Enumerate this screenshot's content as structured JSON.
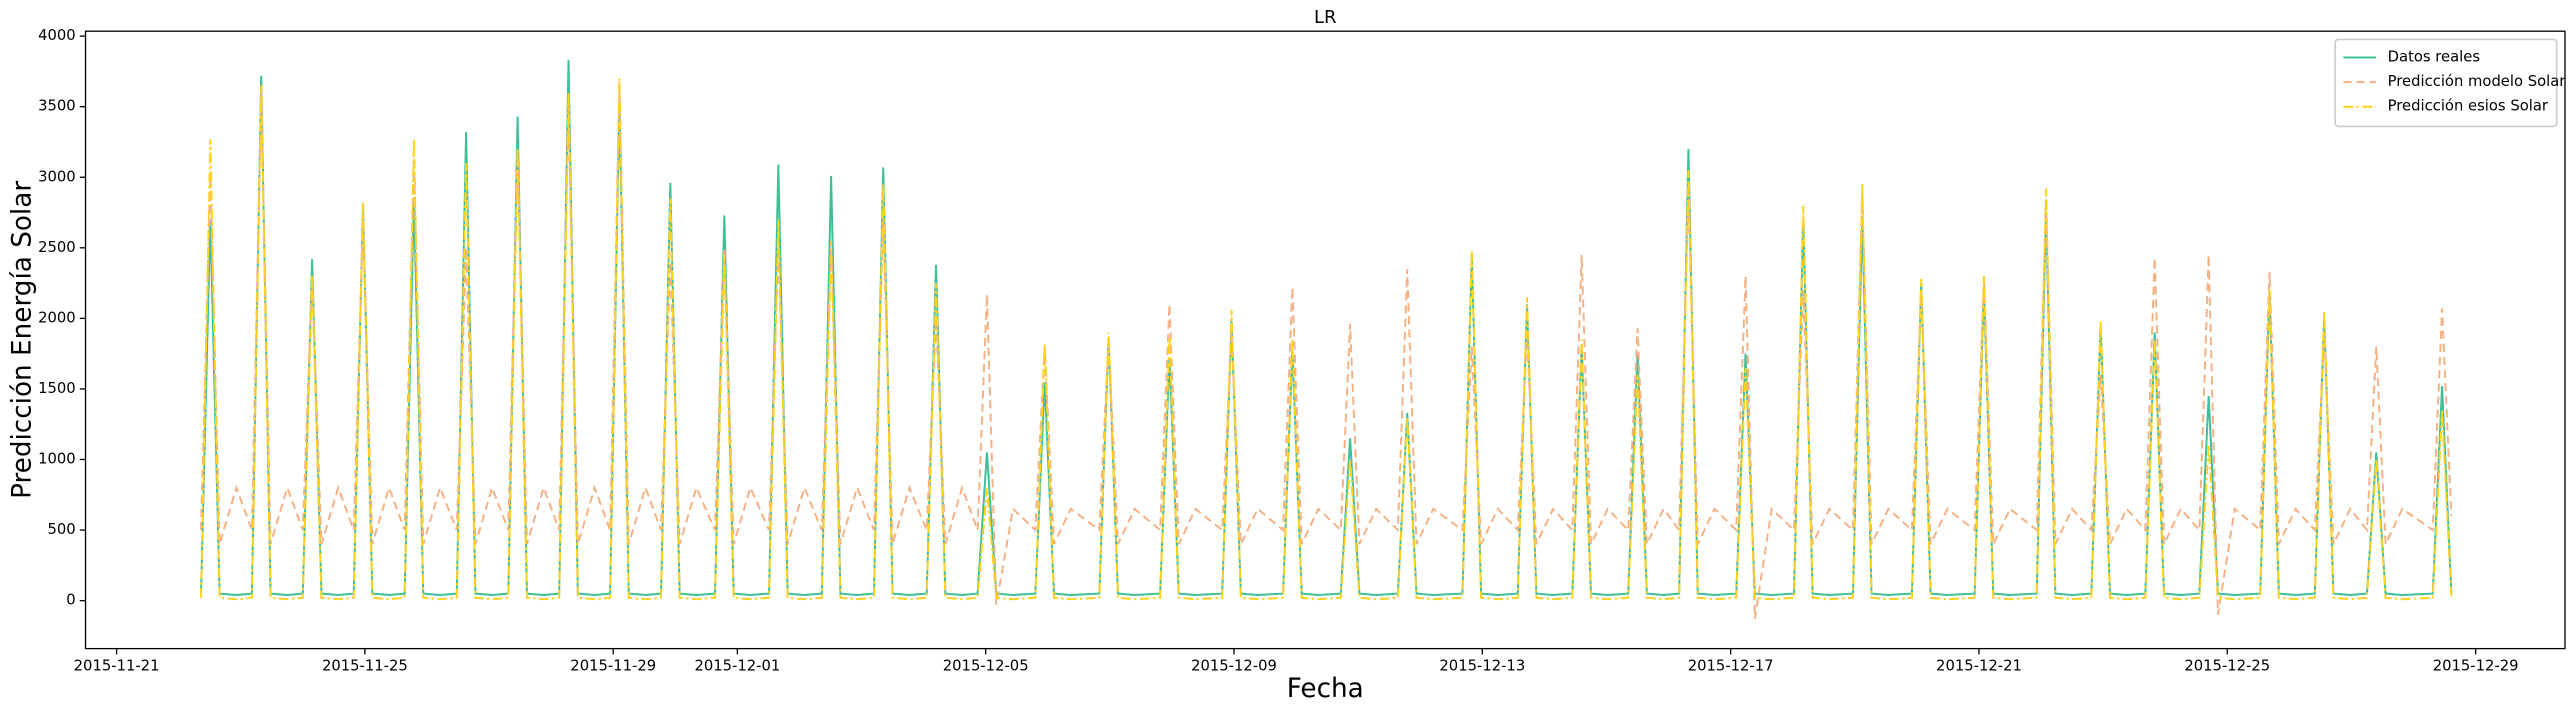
{
  "chart_data": {
    "type": "line",
    "title": "LR",
    "x_label": "Fecha",
    "y_label": "Predicción Energía Solar",
    "x": [
      22.36,
      22.51,
      22.66,
      22.93,
      23.18,
      23.33,
      23.48,
      23.75,
      24.0,
      24.15,
      24.3,
      24.57,
      24.82,
      24.97,
      25.12,
      25.39,
      25.64,
      25.79,
      25.94,
      26.21,
      26.48,
      26.63,
      26.78,
      27.05,
      27.31,
      27.46,
      27.61,
      27.88,
      28.13,
      28.28,
      28.43,
      28.7,
      28.95,
      29.1,
      29.25,
      29.52,
      29.77,
      29.92,
      30.07,
      30.34,
      30.64,
      30.79,
      30.94,
      31.21,
      31.51,
      31.66,
      31.81,
      32.08,
      32.36,
      32.51,
      32.66,
      32.93,
      33.2,
      33.35,
      33.5,
      33.77,
      34.05,
      34.2,
      34.35,
      34.62,
      34.87,
      35.02,
      35.17,
      35.44,
      35.8,
      35.95,
      36.1,
      36.37,
      36.83,
      36.98,
      37.13,
      37.4,
      37.81,
      37.96,
      38.11,
      38.38,
      38.81,
      38.96,
      39.11,
      39.38,
      39.79,
      39.94,
      40.09,
      40.36,
      40.72,
      40.87,
      41.02,
      41.29,
      41.64,
      41.79,
      41.94,
      42.21,
      42.68,
      42.83,
      42.98,
      43.25,
      43.57,
      43.72,
      43.87,
      44.14,
      44.45,
      44.6,
      44.75,
      45.02,
      45.35,
      45.5,
      45.65,
      45.92,
      46.17,
      46.32,
      46.47,
      46.74,
      47.09,
      47.24,
      47.39,
      47.66,
      48.02,
      48.17,
      48.32,
      48.59,
      48.97,
      49.12,
      49.27,
      49.54,
      49.92,
      50.07,
      50.22,
      50.49,
      50.93,
      51.08,
      51.23,
      51.5,
      51.93,
      52.08,
      52.23,
      52.5,
      52.81,
      52.96,
      53.11,
      53.38,
      53.68,
      53.83,
      53.98,
      54.25,
      54.55,
      54.7,
      54.85,
      55.12,
      55.53,
      55.68,
      55.83,
      56.1,
      56.41,
      56.56,
      56.71,
      56.98,
      57.25,
      57.4,
      57.55,
      57.82,
      58.31,
      58.46,
      58.61
    ],
    "series": [
      {
        "name": "Datos reales",
        "color": "#3dbf98",
        "dash": "",
        "values": [
          50,
          2700,
          50,
          40,
          50,
          3720,
          50,
          40,
          50,
          2420,
          50,
          40,
          50,
          2800,
          50,
          40,
          50,
          2850,
          50,
          40,
          50,
          3320,
          50,
          40,
          50,
          3430,
          50,
          40,
          50,
          3830,
          50,
          40,
          50,
          3550,
          50,
          40,
          50,
          2960,
          50,
          40,
          50,
          2730,
          50,
          40,
          50,
          3090,
          50,
          40,
          50,
          3010,
          50,
          40,
          50,
          3070,
          50,
          40,
          50,
          2380,
          50,
          40,
          50,
          1050,
          50,
          40,
          50,
          1550,
          50,
          40,
          50,
          1870,
          50,
          40,
          50,
          1720,
          50,
          40,
          50,
          1980,
          50,
          40,
          50,
          1780,
          50,
          40,
          50,
          1150,
          50,
          40,
          50,
          1330,
          50,
          40,
          50,
          2450,
          50,
          40,
          50,
          2100,
          50,
          40,
          50,
          1800,
          50,
          40,
          50,
          1750,
          50,
          40,
          50,
          3200,
          50,
          40,
          50,
          1750,
          50,
          40,
          50,
          2700,
          50,
          40,
          50,
          2720,
          50,
          40,
          50,
          2250,
          50,
          40,
          50,
          2220,
          50,
          40,
          50,
          2760,
          50,
          40,
          50,
          1950,
          50,
          40,
          50,
          1900,
          50,
          40,
          50,
          1450,
          50,
          40,
          50,
          2200,
          50,
          40,
          50,
          2000,
          50,
          40,
          50,
          1050,
          50,
          40,
          50,
          1520,
          50
        ]
      },
      {
        "name": "Predicción modelo Solar",
        "color": "#f4b183",
        "dash": "5 3",
        "values": [
          500,
          3000,
          400,
          800,
          500,
          3600,
          400,
          800,
          500,
          2300,
          400,
          800,
          500,
          2700,
          400,
          800,
          500,
          3100,
          400,
          800,
          500,
          2500,
          400,
          800,
          500,
          3200,
          400,
          800,
          500,
          3500,
          400,
          800,
          500,
          3650,
          400,
          800,
          500,
          2400,
          400,
          800,
          500,
          2500,
          400,
          800,
          500,
          2500,
          400,
          800,
          500,
          2500,
          400,
          800,
          500,
          2700,
          400,
          800,
          500,
          2000,
          400,
          800,
          500,
          2170,
          -30,
          650,
          500,
          1800,
          400,
          650,
          500,
          1850,
          400,
          650,
          500,
          2100,
          400,
          650,
          500,
          1900,
          400,
          650,
          500,
          2220,
          400,
          650,
          500,
          1960,
          400,
          650,
          500,
          2350,
          400,
          650,
          500,
          1800,
          400,
          650,
          500,
          1900,
          400,
          650,
          500,
          2450,
          400,
          650,
          500,
          1930,
          400,
          650,
          500,
          2900,
          400,
          650,
          500,
          2300,
          -130,
          650,
          500,
          2200,
          400,
          650,
          500,
          2900,
          400,
          650,
          500,
          2200,
          400,
          650,
          500,
          2300,
          400,
          650,
          500,
          2850,
          400,
          650,
          500,
          1600,
          400,
          650,
          500,
          2430,
          400,
          650,
          500,
          2450,
          -100,
          650,
          500,
          2330,
          400,
          650,
          500,
          1900,
          400,
          650,
          500,
          1800,
          400,
          650,
          500,
          2070,
          600
        ]
      },
      {
        "name": "Predicción esios Solar",
        "color": "#ffd21f",
        "dash": "6 2 1.5 2",
        "values": [
          20,
          3270,
          20,
          10,
          20,
          3650,
          20,
          10,
          20,
          2300,
          20,
          10,
          20,
          2820,
          20,
          10,
          20,
          3270,
          20,
          10,
          20,
          3100,
          20,
          10,
          20,
          3200,
          20,
          10,
          20,
          3600,
          20,
          10,
          20,
          3700,
          20,
          10,
          20,
          2850,
          20,
          10,
          20,
          2450,
          20,
          10,
          20,
          2700,
          20,
          10,
          20,
          2550,
          20,
          10,
          20,
          2950,
          20,
          10,
          20,
          2250,
          20,
          10,
          20,
          800,
          20,
          10,
          20,
          1820,
          20,
          10,
          20,
          1900,
          20,
          10,
          20,
          1870,
          20,
          10,
          20,
          2060,
          20,
          10,
          20,
          1850,
          20,
          10,
          20,
          1000,
          20,
          10,
          20,
          1300,
          20,
          10,
          20,
          2480,
          20,
          10,
          20,
          2150,
          20,
          10,
          20,
          1850,
          20,
          10,
          20,
          1600,
          20,
          10,
          20,
          3050,
          20,
          10,
          20,
          1650,
          20,
          10,
          20,
          2800,
          20,
          10,
          20,
          2950,
          20,
          10,
          20,
          2280,
          20,
          10,
          20,
          2300,
          20,
          10,
          20,
          2920,
          20,
          10,
          20,
          1980,
          20,
          10,
          20,
          1850,
          20,
          10,
          20,
          1100,
          20,
          10,
          20,
          2200,
          20,
          10,
          20,
          2050,
          20,
          10,
          20,
          1000,
          20,
          10,
          20,
          1350,
          20
        ]
      }
    ],
    "xlim": [
      20.5,
      60.44
    ],
    "ylim": [
      -340,
      4035
    ],
    "xticks": [
      {
        "value": 21,
        "label": "2015-11-21"
      },
      {
        "value": 25,
        "label": "2015-11-25"
      },
      {
        "value": 29,
        "label": "2015-11-29"
      },
      {
        "value": 31,
        "label": "2015-12-01"
      },
      {
        "value": 35,
        "label": "2015-12-05"
      },
      {
        "value": 39,
        "label": "2015-12-09"
      },
      {
        "value": 43,
        "label": "2015-12-13"
      },
      {
        "value": 47,
        "label": "2015-12-17"
      },
      {
        "value": 51,
        "label": "2015-12-21"
      },
      {
        "value": 55,
        "label": "2015-12-25"
      },
      {
        "value": 59,
        "label": "2015-12-29"
      }
    ],
    "yticks": [
      0,
      500,
      1000,
      1500,
      2000,
      2500,
      3000,
      3500,
      4000
    ],
    "legend": "upper right",
    "grid": false
  }
}
